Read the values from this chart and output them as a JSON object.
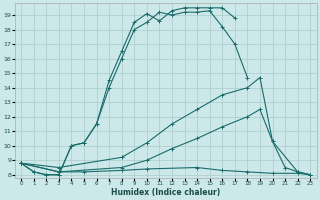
{
  "xlabel": "Humidex (Indice chaleur)",
  "bg_color": "#cce8e8",
  "grid_color": "#aacccc",
  "line_color": "#1a6b6b",
  "xlim": [
    -0.5,
    23.5
  ],
  "ylim": [
    7.8,
    19.8
  ],
  "xticks": [
    0,
    1,
    2,
    3,
    4,
    5,
    6,
    7,
    8,
    9,
    10,
    11,
    12,
    13,
    14,
    15,
    16,
    17,
    18,
    19,
    20,
    21,
    22,
    23
  ],
  "yticks": [
    8,
    9,
    10,
    11,
    12,
    13,
    14,
    15,
    16,
    17,
    18,
    19
  ],
  "line1_x": [
    0,
    1,
    2,
    3,
    4,
    5,
    6,
    7,
    8,
    9,
    10,
    11,
    12,
    13,
    14,
    15,
    16,
    17,
    18
  ],
  "line1_y": [
    8.8,
    8.2,
    8.0,
    8.0,
    10.0,
    10.2,
    11.5,
    14.0,
    16.0,
    18.0,
    18.5,
    19.2,
    19.0,
    19.2,
    19.2,
    19.3,
    18.2,
    17.0,
    14.7
  ],
  "line2_x": [
    0,
    1,
    2,
    3,
    4,
    5,
    6,
    7,
    8,
    9,
    10,
    11,
    12,
    13,
    14,
    15,
    16,
    17
  ],
  "line2_y": [
    8.8,
    8.2,
    8.0,
    8.0,
    10.0,
    10.2,
    11.5,
    14.5,
    16.5,
    18.5,
    19.1,
    18.6,
    19.3,
    19.5,
    19.5,
    19.5,
    19.5,
    18.8
  ],
  "line3_x": [
    0,
    3,
    8,
    10,
    12,
    14,
    16,
    18,
    19,
    20,
    21,
    22,
    23
  ],
  "line3_y": [
    8.8,
    8.2,
    8.5,
    9.0,
    9.8,
    10.5,
    11.3,
    12.0,
    12.5,
    10.3,
    8.5,
    8.2,
    8.0
  ],
  "line4_x": [
    0,
    3,
    8,
    10,
    12,
    14,
    16,
    18,
    19,
    20,
    22,
    23
  ],
  "line4_y": [
    8.8,
    8.5,
    9.2,
    10.2,
    11.5,
    12.5,
    13.5,
    14.0,
    14.7,
    10.3,
    8.2,
    8.0
  ],
  "line5_x": [
    0,
    3,
    5,
    8,
    10,
    14,
    16,
    18,
    20,
    22,
    23
  ],
  "line5_y": [
    8.8,
    8.2,
    8.2,
    8.3,
    8.4,
    8.5,
    8.3,
    8.2,
    8.1,
    8.1,
    8.0
  ]
}
